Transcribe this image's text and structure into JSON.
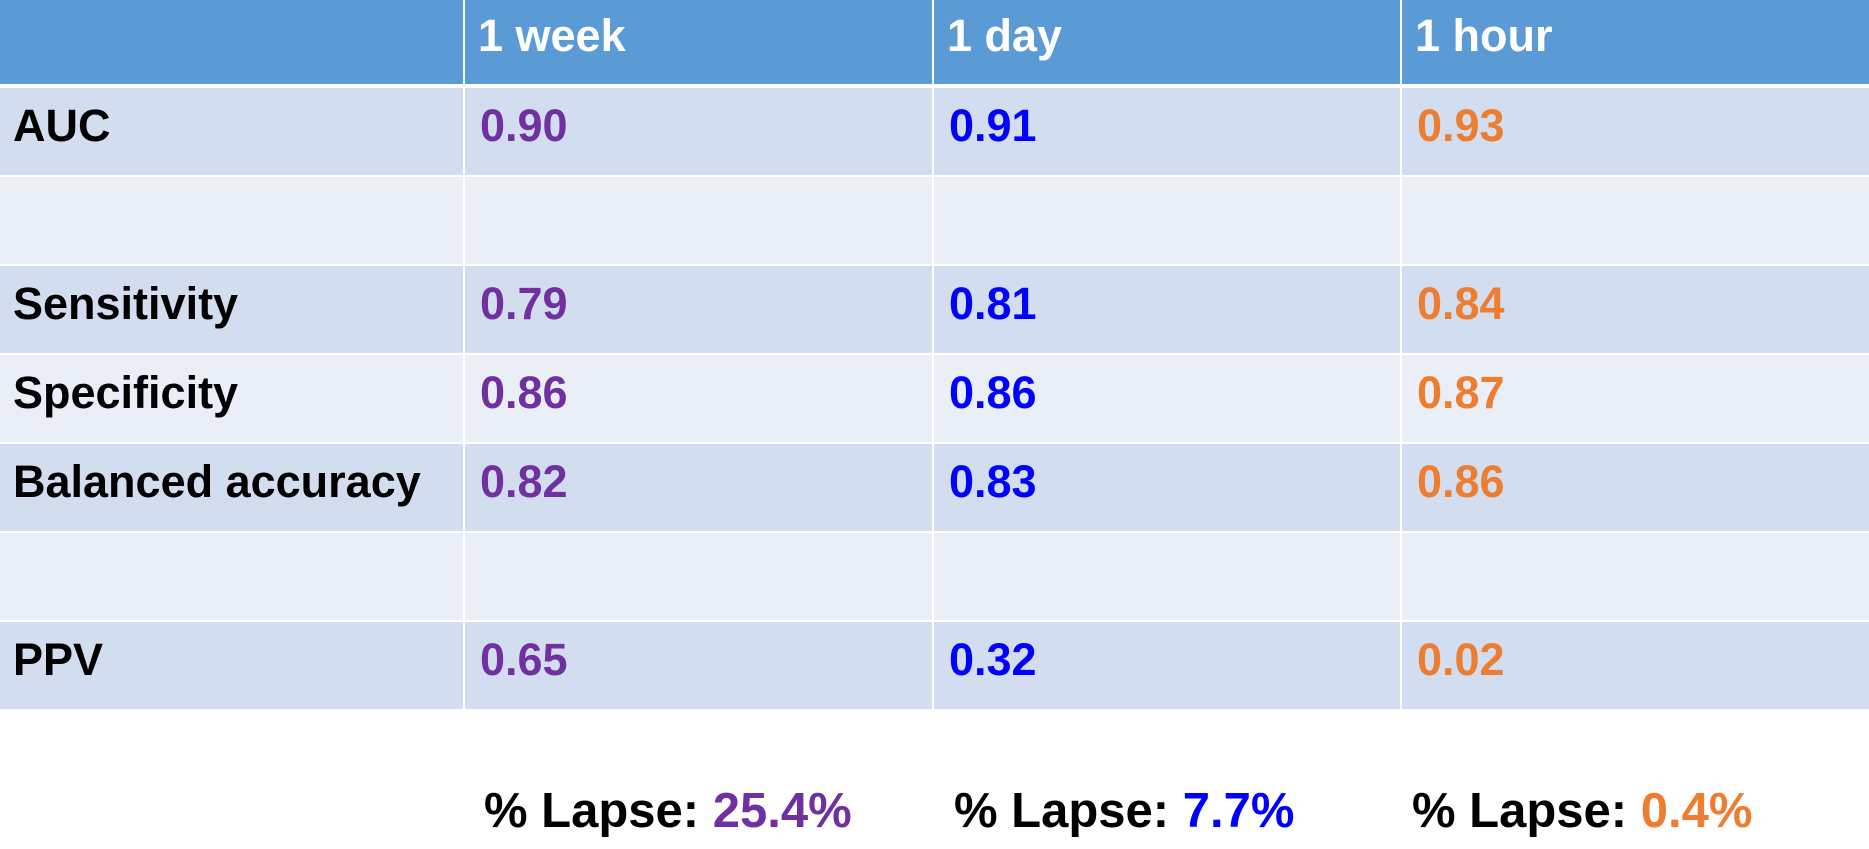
{
  "header": {
    "corner": "",
    "week": "1 week",
    "day": "1 day",
    "hour": "1 hour"
  },
  "rows": [
    {
      "label": "AUC",
      "week": "0.90",
      "day": "0.91",
      "hour": "0.93"
    },
    {
      "label": "",
      "week": "",
      "day": "",
      "hour": ""
    },
    {
      "label": "Sensitivity",
      "week": "0.79",
      "day": "0.81",
      "hour": "0.84"
    },
    {
      "label": "Specificity",
      "week": "0.86",
      "day": "0.86",
      "hour": "0.87"
    },
    {
      "label": "Balanced accuracy",
      "week": "0.82",
      "day": "0.83",
      "hour": "0.86"
    },
    {
      "label": "",
      "week": "",
      "day": "",
      "hour": ""
    },
    {
      "label": "PPV",
      "week": "0.65",
      "day": "0.32",
      "hour": "0.02"
    }
  ],
  "lapse": {
    "label": "% Lapse: ",
    "week": "25.4%",
    "day": "7.7%",
    "hour": "0.4%"
  },
  "colors": {
    "header_bg": "#5b9bd5",
    "row_dark": "#d2deef",
    "row_light": "#eaeff7",
    "week": "#7030a0",
    "day": "#0000ff",
    "hour": "#ed7d31"
  }
}
